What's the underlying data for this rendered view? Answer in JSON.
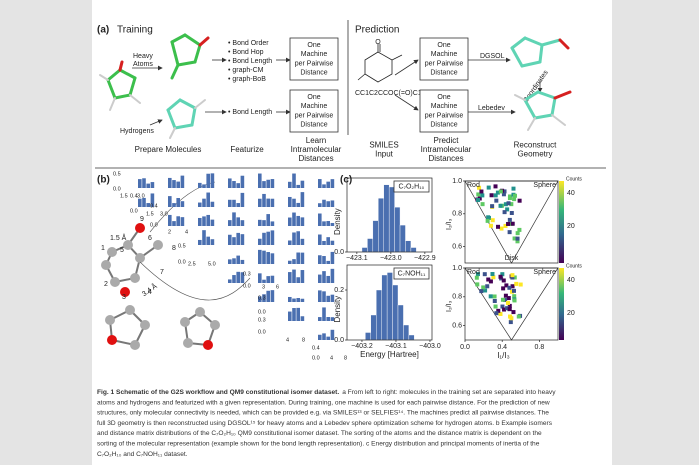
{
  "panel_a": {
    "label": "(a)",
    "training_title": "Training",
    "prediction_title": "Prediction",
    "heavy_atoms": [
      "Heavy",
      "Atoms"
    ],
    "hydrogens": "Hydrogens",
    "heavy_features": [
      "• Bond Order",
      "• Bond Hop",
      "• Bond Length",
      "• graph-CM",
      "• graph-BoB"
    ],
    "hydrogen_feature": "• Bond Length",
    "machine_box": [
      "One",
      "Machine",
      "per Pairwise",
      "Distance"
    ],
    "smiles": "CC1C2CCOC(=O)C12",
    "dgsol": "DGSOL",
    "lebedev": "Lebedev",
    "coordinates": "Coordinates",
    "steps": [
      [
        "Prepare Molecules"
      ],
      [
        "Featurize"
      ],
      [
        "Learn",
        "Intramolecular",
        "Distances"
      ],
      [
        "SMILES",
        "Input"
      ],
      [
        "Predict",
        "Intramolecular",
        "Distances"
      ],
      [
        "Reconstruct",
        "Geometry"
      ]
    ]
  },
  "panel_b": {
    "label": "(b)",
    "distance_short": "1.5 Å",
    "distance_long": "3.4 Å",
    "atom_numbers": [
      "9",
      "6",
      "8",
      "1",
      "5",
      "7",
      "2",
      "3",
      "4"
    ],
    "tick_labels": [
      "0.5",
      "0.0",
      "1.5",
      "3.0",
      "0.4",
      "0.0",
      "1.5",
      "3.0",
      "0.4",
      "0.0",
      "2",
      "4",
      "0.5",
      "0.0",
      "2.5",
      "5.0",
      "0.3",
      "0.0",
      "3",
      "6",
      "0.3",
      "0.0",
      "0.3",
      "0.0",
      "4",
      "8",
      "0.4",
      "0.0",
      "4",
      "8"
    ]
  },
  "panel_c": {
    "label": "(c)",
    "histograms": [
      {
        "type": "histogram",
        "formula": "C₇O₂H₁₀",
        "ylabel": "Density",
        "bins": [
          -423.085,
          -423.069,
          -423.053,
          -423.037,
          -423.021,
          -423.005,
          -422.989,
          -422.973,
          -422.957,
          -422.941,
          -422.925
        ],
        "values": [
          0.02,
          0.06,
          0.14,
          0.24,
          0.3,
          0.29,
          0.2,
          0.12,
          0.05,
          0.02
        ],
        "color": "#4a6fb0",
        "xlim": [
          -423.129,
          -422.879
        ],
        "ylim": [
          0,
          0.33
        ],
        "xticks": [
          {
            "value": -423.1,
            "label": "−423.1"
          },
          {
            "value": -423.0,
            "label": "−423.0"
          },
          {
            "value": -422.9,
            "label": "−422.9"
          }
        ],
        "yticks": [
          {
            "value": 0,
            "label": "0.0"
          }
        ]
      },
      {
        "type": "histogram",
        "formula": "C₇NOH₁₁",
        "ylabel": "Density",
        "xlabel": "Energy [Hartree]",
        "bins": [
          -403.19,
          -403.174,
          -403.158,
          -403.142,
          -403.126,
          -403.11,
          -403.094,
          -403.078,
          -403.062,
          -403.046
        ],
        "values": [
          0.03,
          0.1,
          0.2,
          0.26,
          0.27,
          0.22,
          0.14,
          0.06,
          0.02
        ],
        "color": "#4a6fb0",
        "xlim": [
          -403.244,
          -402.994
        ],
        "ylim": [
          0,
          0.3
        ],
        "xticks": [
          {
            "value": -403.2,
            "label": "−403.2"
          },
          {
            "value": -403.1,
            "label": "−403.1"
          },
          {
            "value": -403.0,
            "label": "−403.0"
          }
        ],
        "yticks": [
          {
            "value": 0,
            "label": "0.0"
          },
          {
            "value": 0.2,
            "label": "0.2"
          }
        ]
      }
    ],
    "pmi": {
      "corner_labels": [
        "Rod",
        "Sphere",
        "Disk"
      ],
      "ylabel": "I₂/I₃",
      "xlabel": "I₁/I₃",
      "colorbar_title": "Counts",
      "colorbar_ticks": [
        "40",
        "20"
      ],
      "xlim": [
        0,
        1
      ],
      "ylim": [
        0.5,
        1.0
      ],
      "xticks": [
        {
          "value": 0,
          "label": "0.0"
        },
        {
          "value": 0.4,
          "label": "0.4"
        },
        {
          "value": 0.8,
          "label": "0.8"
        }
      ],
      "yticks": [
        {
          "value": 1.0,
          "label": "1.0"
        },
        {
          "value": 0.8,
          "label": "0.8"
        },
        {
          "value": 0.6,
          "label": "0.6"
        }
      ]
    }
  },
  "caption": {
    "title": "Fig. 1 Schematic of the G2S workflow and QM9 constitutional isomer dataset.",
    "lines": [
      "a From left to right: molecules in the training set are separated into heavy",
      "atoms and hydrogens and featurized with a given representation. During training, one machine is used for each pairwise distance. For the prediction of new",
      "structures, only molecular connectivity is needed, which can be provided e.g. via SMILES¹³ or SELFIES¹⁴. The machines predict all pairwise distances. The",
      "full 3D geometry is then reconstructed using DGSOL¹⁵ for heavy atoms and a Lebedev sphere optimization scheme for hydrogen atoms. b Example isomers",
      "and distance matrix distributions of the C₇O₂H₁₀ QM9 constitutional isomer dataset. The sorting of the atoms and the distance matrix is dependent on the",
      "sorting of the molecular representation (example shown for the bond length representation). c Energy distribution and principal moments of inertia of the",
      "C₇O₂H₁₀ and C₇NOH₁₁ dataset."
    ]
  }
}
